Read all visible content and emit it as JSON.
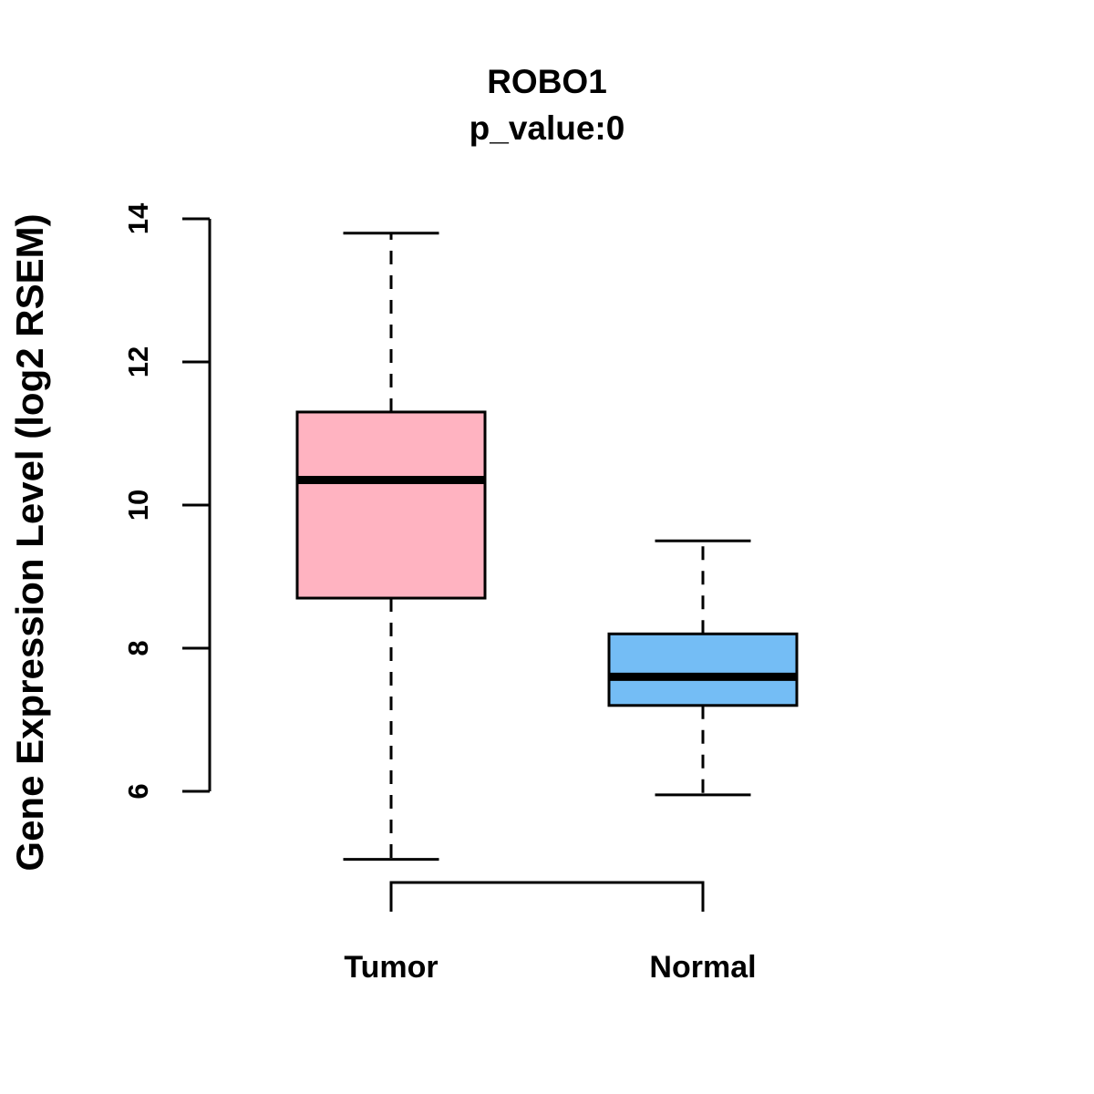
{
  "chart_data": {
    "type": "boxplot",
    "title": "ROBO1",
    "subtitle": "p_value:0",
    "ylabel": "Gene Expression Level (log2 RSEM)",
    "categories": [
      "Tumor",
      "Normal"
    ],
    "series": [
      {
        "name": "Tumor",
        "color": "#FFB3C1",
        "whisker_low": 5.05,
        "q1": 8.7,
        "median": 10.35,
        "q3": 11.3,
        "whisker_high": 13.8
      },
      {
        "name": "Normal",
        "color": "#74BDF5",
        "whisker_low": 5.95,
        "q1": 7.2,
        "median": 7.6,
        "q3": 8.2,
        "whisker_high": 9.5
      }
    ],
    "yticks": [
      6,
      8,
      10,
      12,
      14
    ],
    "ylim": [
      4.7,
      14
    ],
    "grid": false,
    "legend": false,
    "line_color": "#000000",
    "background_color": "#ffffff"
  }
}
